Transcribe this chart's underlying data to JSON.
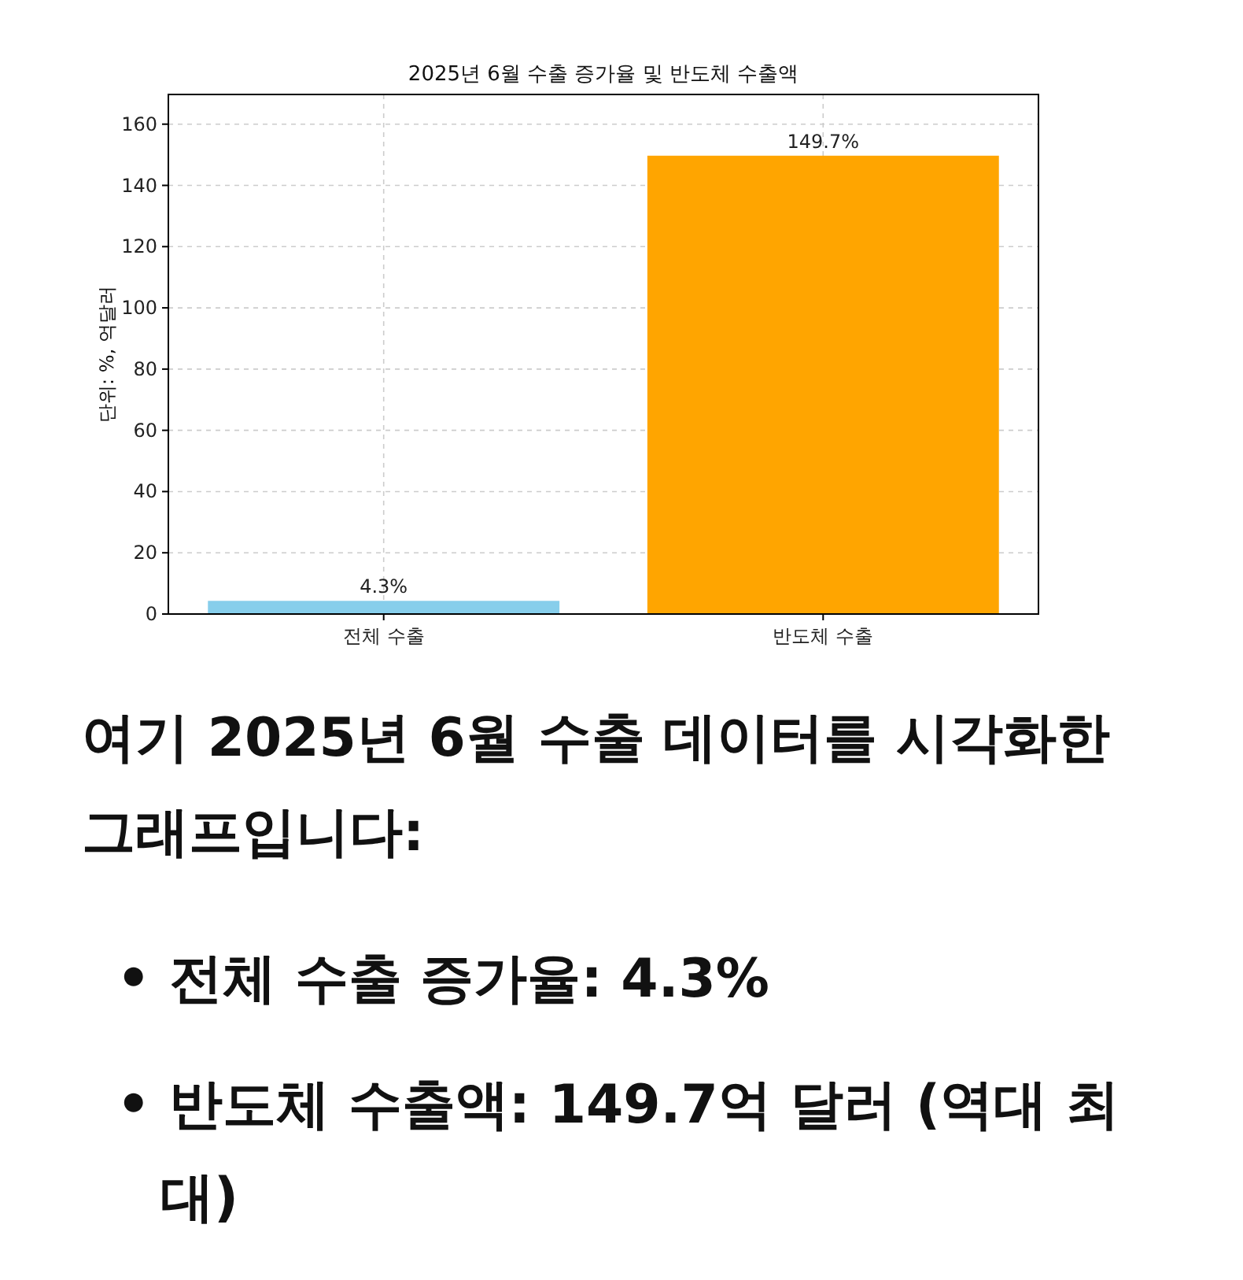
{
  "chart_data": {
    "type": "bar",
    "title": "2025년 6월 수출 증가율 및 반도체 수출액",
    "ylabel": "단위: %, 억달러",
    "categories": [
      "전체 수출",
      "반도체 수출"
    ],
    "values": [
      4.3,
      149.7
    ],
    "colors": [
      "#87ceeb",
      "#ffa500"
    ],
    "value_labels": [
      "4.3%",
      "149.7%"
    ],
    "ylim": [
      0,
      169.7
    ],
    "yticks": [
      0,
      20,
      40,
      60,
      80,
      100,
      120,
      140,
      160
    ],
    "grid": true,
    "annotations": [
      "여기 2025년 6월 수출 데이터를 시각화한 그래프입니다:",
      "• 전체 수출 증가율: 4.3%",
      "• 반도체 수출액: 149.7억 달러 (역대 최대)"
    ]
  }
}
